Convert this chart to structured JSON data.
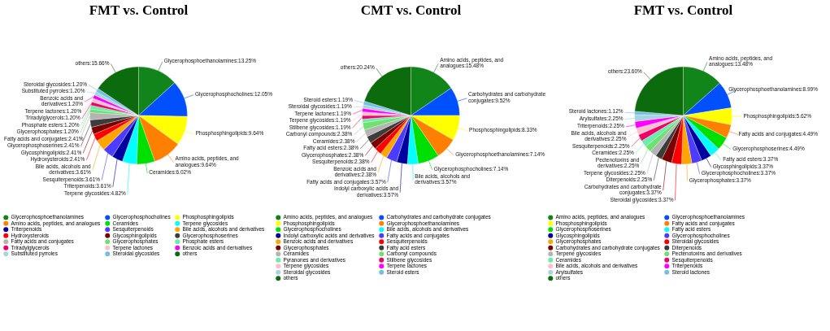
{
  "chart_data": [
    {
      "type": "pie",
      "title": "FMT vs. Control",
      "legend": "bottom",
      "categories": [
        "Glycerophosphoethanolamines",
        "Glycerophosphocholines",
        "Phosphosphingolipids",
        "Amino acids, peptides, and analogues",
        "Ceramides",
        "Terpene glycosides",
        "Triterpenoids",
        "Sesquiterpenoids",
        "Bile acids, alcohols and derivatives",
        "Hydroxysteroids",
        "Glycosphingolipids",
        "Glycerophosphoserines",
        "Fatty acids and conjugates",
        "Glycerophosphates",
        "Phosphate esters",
        "Triradylglycerols",
        "Terpene lactones",
        "Benzoic acids and derivatives",
        "Substituted pyrroles",
        "Steroidal glycosides",
        "others"
      ],
      "values": [
        13.25,
        12.05,
        9.64,
        9.64,
        6.02,
        4.82,
        3.61,
        3.61,
        3.61,
        2.41,
        2.41,
        2.41,
        2.41,
        1.2,
        1.2,
        1.2,
        1.2,
        1.2,
        1.2,
        1.2,
        15.66
      ],
      "value_labels": [
        "Glycerophosphoethanolamines:13.25%",
        "Glycerophosphocholines:12.05%",
        "Phosphosphingolipids:9.64%",
        "Amino acids, peptides, and analogues:9.64%",
        "Ceramides:6.02%",
        "Terpene glycosides:4.82%",
        "Triterpenoids:3.61%",
        "Sesquiterpenoids:3.61%",
        "Bile acids, alcohols and derivatives:3.61%",
        "Hydroxysteroids:2.41%",
        "Glycosphingolipids:2.41%",
        "Glycerophosphoserines:2.41%",
        "Fatty acids and conjugates:2.41%",
        "Glycerophosphates:1.20%",
        "Phosphate esters:1.20%",
        "Triradylglycerols:1.20%",
        "Terpene lactones:1.20%",
        "Benzoic acids and derivatives:1.20%",
        "Substituted pyrroles:1.20%",
        "Steroidal glycosides:1.20%",
        "others:15.66%"
      ],
      "colors": [
        "#12851a",
        "#0050ff",
        "#ffff00",
        "#ff8000",
        "#00e000",
        "#00ffff",
        "#0000a0",
        "#4b3cff",
        "#ffa500",
        "#ff0000",
        "#7a0000",
        "#3c3c3c",
        "#b4b4b4",
        "#70e070",
        "#66eeaa",
        "#f0006a",
        "#ffc0cb",
        "#ff00ff",
        "#a9d3e0",
        "#70c0e8",
        "#0c6b0c"
      ]
    },
    {
      "type": "pie",
      "title": "CMT vs. Control",
      "legend": "bottom",
      "categories": [
        "Amino acids, peptides, and analogues",
        "Carbohydrates and carbohydrate conjugates",
        "Phosphosphingolipids",
        "Glycerophosphoethanolamines",
        "Glycerophosphocholines",
        "Bile acids, alcohols and derivatives",
        "Indolyl carboxylic acids and derivatives",
        "Fatty acids and conjugates",
        "Benzoic acids and derivatives",
        "Sesquiterpenoids",
        "Glycerophosphates",
        "Fatty acid esters",
        "Ceramides",
        "Carbonyl compounds",
        "Pyranones and derivatives",
        "Stilbene glycosides",
        "Terpene glycosides",
        "Terpene lactones",
        "Steroidal glycosides",
        "Steroid esters",
        "others"
      ],
      "values": [
        15.48,
        9.52,
        8.33,
        7.14,
        7.14,
        3.57,
        3.57,
        3.57,
        2.38,
        2.38,
        2.38,
        2.38,
        2.38,
        2.38,
        1.19,
        1.19,
        1.19,
        1.19,
        1.19,
        1.19,
        20.24
      ],
      "value_labels": [
        "Amino acids, peptides, and analogues:15.48%",
        "Carbohydrates and carbohydrate conjugates:9.52%",
        "Phosphosphingolipids:8.33%",
        "Glycerophosphoethanolamines:7.14%",
        "Glycerophosphocholines:7.14%",
        "Bile acids, alcohols and derivatives:3.57%",
        "Indolyl carboxylic acids and derivatives:3.57%",
        "Fatty acids and conjugates:3.57%",
        "Benzoic acids and derivatives:2.38%",
        "Sesquiterpenoids:2.38%",
        "Glycerophosphates:2.38%",
        "Fatty acid esters:2.38%",
        "Ceramides:2.38%",
        "Carbonyl compounds:2.38%",
        null,
        "Stilbene glycosides:1.19%",
        "Terpene glycosides:1.19%",
        "Terpene lactones:1.19%",
        "Steroidal glycosides:1.19%",
        "Steroid esters:1.19%",
        "others:20.24%"
      ],
      "colors": [
        "#12851a",
        "#0050ff",
        "#ffff00",
        "#ff8000",
        "#00e000",
        "#00ffff",
        "#0000a0",
        "#4b3cff",
        "#ffa500",
        "#ff0000",
        "#7a0000",
        "#3c3c3c",
        "#b4b4b4",
        "#70e070",
        "#66eeaa",
        "#f0006a",
        "#ffc0cb",
        "#ff00ff",
        "#a9d3e0",
        "#70c0e8",
        "#0c6b0c"
      ]
    },
    {
      "type": "pie",
      "title": "FMT vs. Control",
      "legend": "bottom",
      "categories": [
        "Amino acids, peptides, and analogues",
        "Glycerophosphoethanolamines",
        "Phosphosphingolipids",
        "Fatty acids and conjugates",
        "Glycerophosphoserines",
        "Fatty acid esters",
        "Glycosphingolipids",
        "Glycerophosphocholines",
        "Glycerophosphates",
        "Steroidal glycosides",
        "Carbohydrates and carbohydrate conjugates",
        "Diterpenoids",
        "Terpene glycosides",
        "Pectenotoxins and derivatives",
        "Ceramides",
        "Sesquiterpenoids",
        "Bile acids, alcohols and derivatives",
        "Triterpenoids",
        "Arylsulfates",
        "Steroid lactones",
        "others"
      ],
      "values": [
        13.48,
        8.99,
        5.62,
        4.49,
        4.49,
        3.37,
        3.37,
        3.37,
        3.37,
        3.37,
        3.37,
        2.25,
        2.25,
        2.25,
        2.25,
        2.25,
        2.25,
        2.25,
        2.25,
        1.12,
        23.6
      ],
      "value_labels": [
        "Amino acids, peptides, and analogues:13.48%",
        "Glycerophosphoethanolamines:8.99%",
        "Phosphosphingolipids:5.62%",
        "Fatty acids and conjugates:4.49%",
        "Glycerophosphoserines:4.49%",
        "Fatty acid esters:3.37%",
        "Glycosphingolipids:3.37%",
        "Glycerophosphocholines:3.37%",
        "Glycerophosphates:3.37%",
        "Steroidal glycosides:3.37%",
        "Carbohydrates and carbohydrate conjugates:3.37%",
        "Diterpenoids:2.25%",
        "Terpene glycosides:2.25%",
        "Pectenotoxins and derivatives:2.25%",
        "Ceramides:2.25%",
        "Sesquiterpenoids:2.25%",
        "Bile acids, alcohols and derivatives:2.25%",
        "Triterpenoids:2.25%",
        "Arylsulfates:2.25%",
        "Steroid lactones:1.12%",
        "others:23.60%"
      ],
      "colors": [
        "#12851a",
        "#0050ff",
        "#ffff00",
        "#ff8000",
        "#00e000",
        "#00ffff",
        "#0000a0",
        "#4b3cff",
        "#ffa500",
        "#ff0000",
        "#7a0000",
        "#3c3c3c",
        "#b4b4b4",
        "#70e070",
        "#66eeaa",
        "#f0006a",
        "#ffc0cb",
        "#ff00ff",
        "#a9d3e0",
        "#70c0e8",
        "#0c6b0c"
      ]
    }
  ]
}
